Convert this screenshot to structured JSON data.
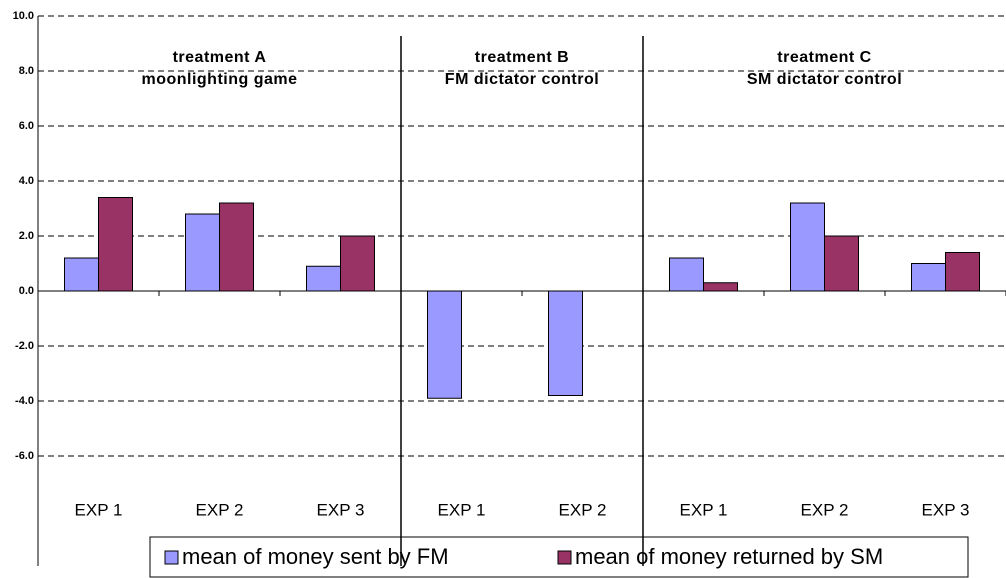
{
  "chart_data": {
    "type": "bar",
    "categories": [
      "EXP 1",
      "EXP 2",
      "EXP 3",
      "EXP 1",
      "EXP 2",
      "EXP 1",
      "EXP 2",
      "EXP 3"
    ],
    "series": [
      {
        "name": "mean of money sent by FM",
        "color": "#9999ff",
        "values": [
          1.2,
          2.8,
          0.9,
          -3.9,
          -3.8,
          1.2,
          3.2,
          1.0
        ]
      },
      {
        "name": "mean of money returned by SM",
        "color": "#993366",
        "values": [
          3.4,
          3.2,
          2.0,
          null,
          null,
          0.3,
          2.0,
          1.4
        ]
      }
    ],
    "annotations": [
      [
        "treatment A",
        "moonlighting game"
      ],
      [
        "treatment B",
        "FM dictator control"
      ],
      [
        "treatment C",
        "SM dictator control"
      ]
    ],
    "ylim": [
      -10,
      10
    ],
    "yticks": [
      {
        "value": 10,
        "label": "10.0"
      },
      {
        "value": 8,
        "label": "8.0"
      },
      {
        "value": 6,
        "label": "6.0"
      },
      {
        "value": 4,
        "label": "4.0"
      },
      {
        "value": 2,
        "label": "2.0"
      },
      {
        "value": 0,
        "label": "0.0"
      },
      {
        "value": -2,
        "label": "-2.0"
      },
      {
        "value": -4,
        "label": "-4.0"
      },
      {
        "value": -6,
        "label": "-6.0"
      }
    ],
    "grid": true
  }
}
